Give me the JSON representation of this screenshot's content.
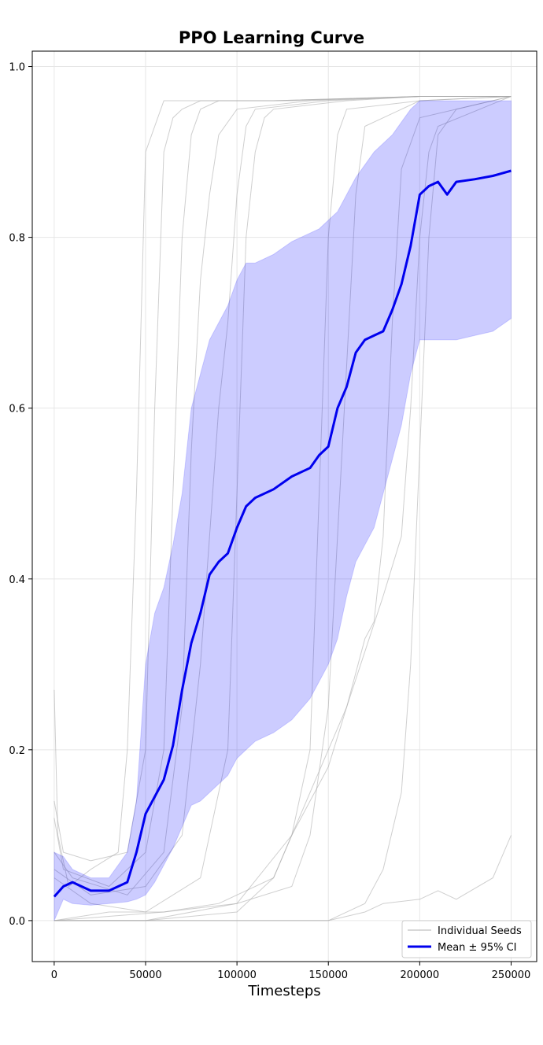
{
  "chart_data": {
    "type": "line",
    "title": "PPO Learning Curve",
    "xlabel": "Timesteps",
    "ylabel": "",
    "xlim": [
      -12000,
      264000
    ],
    "ylim": [
      -0.048,
      1.018
    ],
    "grid": true,
    "legend_position": "lower-right",
    "x_ticks": [
      0,
      50000,
      100000,
      150000,
      200000,
      250000
    ],
    "x_tick_labels": [
      "0",
      "50000",
      "100000",
      "150000",
      "200000",
      "250000"
    ],
    "y_ticks": [
      0.0,
      0.2,
      0.4,
      0.6,
      0.8,
      1.0
    ],
    "y_tick_labels": [
      "0.0",
      "0.2",
      "0.4",
      "0.6",
      "0.8",
      "1.0"
    ],
    "legend": [
      {
        "label": "Individual Seeds",
        "color": "#b0b0b0",
        "style": "thin"
      },
      {
        "label": "Mean ± 95% CI",
        "color": "#0000ee",
        "style": "thick"
      }
    ],
    "x": [
      0,
      5000,
      10000,
      20000,
      30000,
      40000,
      45000,
      50000,
      55000,
      60000,
      65000,
      70000,
      75000,
      80000,
      85000,
      90000,
      95000,
      100000,
      105000,
      110000,
      120000,
      130000,
      140000,
      145000,
      150000,
      155000,
      160000,
      165000,
      170000,
      175000,
      180000,
      185000,
      190000,
      195000,
      200000,
      205000,
      210000,
      215000,
      220000,
      230000,
      240000,
      250000
    ],
    "series": [
      {
        "name": "Mean ± 95% CI",
        "color": "#0000ee",
        "values": [
          0.028,
          0.04,
          0.045,
          0.035,
          0.035,
          0.045,
          0.08,
          0.125,
          0.145,
          0.165,
          0.205,
          0.27,
          0.325,
          0.36,
          0.405,
          0.42,
          0.43,
          0.46,
          0.485,
          0.495,
          0.505,
          0.52,
          0.53,
          0.545,
          0.555,
          0.6,
          0.625,
          0.665,
          0.68,
          0.685,
          0.69,
          0.715,
          0.745,
          0.79,
          0.85,
          0.86,
          0.865,
          0.85,
          0.865,
          0.868,
          0.872,
          0.878
        ],
        "ci_lower": [
          0.0,
          0.025,
          0.02,
          0.018,
          0.02,
          0.022,
          0.025,
          0.03,
          0.045,
          0.065,
          0.085,
          0.11,
          0.135,
          0.14,
          0.15,
          0.16,
          0.17,
          0.19,
          0.2,
          0.21,
          0.22,
          0.235,
          0.26,
          0.28,
          0.3,
          0.33,
          0.38,
          0.42,
          0.44,
          0.46,
          0.5,
          0.54,
          0.58,
          0.64,
          0.68,
          0.68,
          0.68,
          0.68,
          0.68,
          0.685,
          0.69,
          0.705
        ],
        "ci_upper": [
          0.08,
          0.075,
          0.06,
          0.05,
          0.05,
          0.08,
          0.14,
          0.3,
          0.36,
          0.39,
          0.44,
          0.5,
          0.6,
          0.64,
          0.68,
          0.7,
          0.72,
          0.75,
          0.77,
          0.77,
          0.78,
          0.795,
          0.805,
          0.81,
          0.82,
          0.83,
          0.85,
          0.87,
          0.885,
          0.9,
          0.91,
          0.92,
          0.935,
          0.95,
          0.96,
          0.96,
          0.96,
          0.96,
          0.96,
          0.96,
          0.96,
          0.96
        ]
      }
    ],
    "seeds": [
      {
        "x": [
          0,
          2000,
          8000,
          20000,
          35000,
          40000,
          45000,
          50000,
          60000,
          80000,
          120000,
          200000,
          250000
        ],
        "values": [
          0.27,
          0.1,
          0.04,
          0.06,
          0.08,
          0.2,
          0.5,
          0.9,
          0.96,
          0.96,
          0.96,
          0.965,
          0.965
        ]
      },
      {
        "x": [
          0,
          5000,
          20000,
          40000,
          50000,
          55000,
          60000,
          65000,
          70000,
          80000,
          120000,
          200000,
          250000
        ],
        "values": [
          0.14,
          0.08,
          0.07,
          0.08,
          0.2,
          0.6,
          0.9,
          0.94,
          0.95,
          0.96,
          0.96,
          0.965,
          0.965
        ]
      },
      {
        "x": [
          0,
          5000,
          30000,
          50000,
          60000,
          65000,
          70000,
          75000,
          80000,
          90000,
          130000,
          200000,
          250000
        ],
        "values": [
          0.12,
          0.06,
          0.04,
          0.08,
          0.2,
          0.5,
          0.8,
          0.92,
          0.95,
          0.96,
          0.96,
          0.965,
          0.965
        ]
      },
      {
        "x": [
          0,
          10000,
          40000,
          60000,
          70000,
          75000,
          80000,
          85000,
          90000,
          100000,
          140000,
          200000,
          250000
        ],
        "values": [
          0.08,
          0.05,
          0.03,
          0.08,
          0.25,
          0.55,
          0.75,
          0.85,
          0.92,
          0.95,
          0.96,
          0.965,
          0.965
        ]
      },
      {
        "x": [
          0,
          20000,
          50000,
          70000,
          80000,
          90000,
          95000,
          100000,
          105000,
          110000,
          150000,
          200000,
          250000
        ],
        "values": [
          0.06,
          0.03,
          0.04,
          0.1,
          0.3,
          0.6,
          0.7,
          0.85,
          0.93,
          0.95,
          0.96,
          0.965,
          0.965
        ]
      },
      {
        "x": [
          0,
          20000,
          50000,
          80000,
          95000,
          100000,
          105000,
          110000,
          115000,
          120000,
          160000,
          200000,
          250000
        ],
        "values": [
          0.05,
          0.02,
          0.01,
          0.05,
          0.2,
          0.5,
          0.8,
          0.9,
          0.94,
          0.95,
          0.96,
          0.965,
          0.965
        ]
      },
      {
        "x": [
          0,
          30000,
          60000,
          90000,
          120000,
          130000,
          140000,
          145000,
          150000,
          155000,
          160000,
          200000,
          250000
        ],
        "values": [
          0.0,
          0.01,
          0.01,
          0.02,
          0.05,
          0.1,
          0.2,
          0.5,
          0.8,
          0.92,
          0.95,
          0.96,
          0.965
        ]
      },
      {
        "x": [
          0,
          30000,
          60000,
          100000,
          130000,
          140000,
          150000,
          155000,
          160000,
          165000,
          170000,
          200000,
          250000
        ],
        "values": [
          0.0,
          0.005,
          0.01,
          0.02,
          0.04,
          0.1,
          0.25,
          0.45,
          0.65,
          0.85,
          0.93,
          0.96,
          0.965
        ]
      },
      {
        "x": [
          0,
          50000,
          100000,
          130000,
          150000,
          160000,
          170000,
          175000,
          180000,
          185000,
          190000,
          200000,
          250000
        ],
        "values": [
          0.0,
          0.0,
          0.02,
          0.1,
          0.18,
          0.25,
          0.33,
          0.35,
          0.45,
          0.7,
          0.88,
          0.94,
          0.965
        ]
      },
      {
        "x": [
          0,
          50000,
          100000,
          120000,
          140000,
          160000,
          180000,
          190000,
          195000,
          200000,
          205000,
          210000,
          250000
        ],
        "values": [
          0.0,
          0.0,
          0.01,
          0.05,
          0.15,
          0.25,
          0.38,
          0.45,
          0.6,
          0.8,
          0.9,
          0.93,
          0.965
        ]
      },
      {
        "x": [
          0,
          50000,
          100000,
          150000,
          170000,
          180000,
          190000,
          195000,
          200000,
          205000,
          210000,
          220000,
          250000
        ],
        "values": [
          0.0,
          0.0,
          0.0,
          0.0,
          0.02,
          0.06,
          0.15,
          0.3,
          0.55,
          0.8,
          0.92,
          0.95,
          0.965
        ]
      },
      {
        "x": [
          0,
          50000,
          100000,
          140000,
          150000,
          160000,
          170000,
          180000,
          200000,
          210000,
          220000,
          240000,
          250000
        ],
        "values": [
          0.0,
          0.0,
          0.0,
          0.0,
          0.0,
          0.005,
          0.01,
          0.02,
          0.025,
          0.035,
          0.025,
          0.05,
          0.1
        ]
      }
    ]
  }
}
